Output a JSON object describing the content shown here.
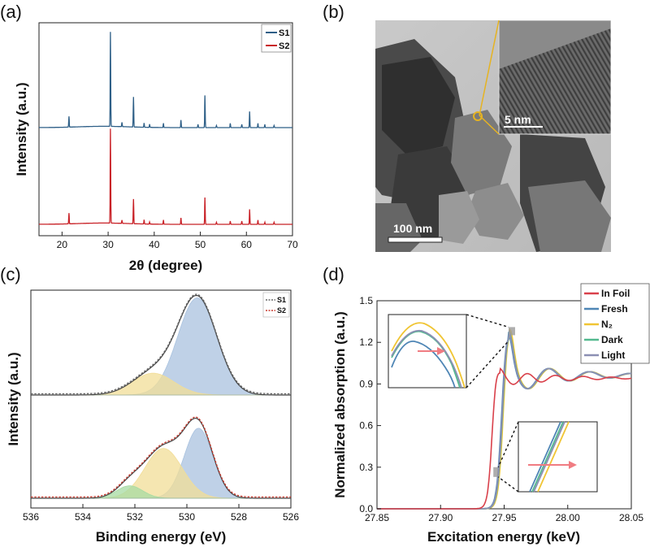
{
  "panels": {
    "a": {
      "label": "(a)"
    },
    "b": {
      "label": "(b)",
      "scale_bar_main": "100 nm",
      "scale_bar_inset": "5 nm"
    },
    "c": {
      "label": "(c)"
    },
    "d": {
      "label": "(d)"
    }
  },
  "chart_data": [
    {
      "id": "a",
      "type": "line",
      "xlabel": "2θ (degree)",
      "ylabel": "Intensity (a.u.)",
      "xlim": [
        15,
        70
      ],
      "xticks": [
        "20",
        "30",
        "40",
        "50",
        "60",
        "70"
      ],
      "yticks": [],
      "legend_position": "top-right",
      "series": [
        {
          "name": "S1",
          "color": "#2e5f87",
          "offset": 0.55,
          "peaks": [
            [
              21.5,
              0.1
            ],
            [
              30.5,
              0.88
            ],
            [
              33.0,
              0.04
            ],
            [
              35.5,
              0.28
            ],
            [
              37.8,
              0.04
            ],
            [
              39.0,
              0.03
            ],
            [
              42.0,
              0.04
            ],
            [
              45.8,
              0.07
            ],
            [
              49.5,
              0.03
            ],
            [
              51.0,
              0.3
            ],
            [
              53.5,
              0.02
            ],
            [
              56.5,
              0.04
            ],
            [
              59.0,
              0.03
            ],
            [
              60.7,
              0.15
            ],
            [
              62.5,
              0.04
            ],
            [
              64.0,
              0.03
            ],
            [
              66.0,
              0.02
            ]
          ]
        },
        {
          "name": "S2",
          "color": "#c82026",
          "offset": 0.0,
          "peaks": [
            [
              21.5,
              0.1
            ],
            [
              30.5,
              0.88
            ],
            [
              33.0,
              0.03
            ],
            [
              35.5,
              0.23
            ],
            [
              37.8,
              0.04
            ],
            [
              39.0,
              0.02
            ],
            [
              42.0,
              0.04
            ],
            [
              45.8,
              0.06
            ],
            [
              51.0,
              0.25
            ],
            [
              53.5,
              0.02
            ],
            [
              56.5,
              0.03
            ],
            [
              59.0,
              0.03
            ],
            [
              60.7,
              0.14
            ],
            [
              62.5,
              0.04
            ],
            [
              64.0,
              0.02
            ],
            [
              66.0,
              0.02
            ]
          ]
        }
      ]
    },
    {
      "id": "c",
      "type": "area",
      "xlabel": "Binding energy (eV)",
      "ylabel": "Intensity (a.u.)",
      "xlim": [
        536,
        526
      ],
      "xticks": [
        "536",
        "534",
        "532",
        "530",
        "528",
        "526"
      ],
      "yticks": [],
      "legend_position": "top-right",
      "series": [
        {
          "name": "S1",
          "color": "#666666",
          "style": "dashed"
        },
        {
          "name": "S2",
          "color": "#c83a2e",
          "style": "dashed"
        }
      ],
      "stacks": [
        {
          "sample": "S1",
          "offset": 1.0,
          "components": [
            {
              "center": 529.6,
              "height": 0.98,
              "width": 0.75,
              "color": "#a9c2df"
            },
            {
              "center": 531.3,
              "height": 0.22,
              "width": 0.8,
              "color": "#f2dd97"
            }
          ]
        },
        {
          "sample": "S2",
          "offset": 0.0,
          "components": [
            {
              "center": 529.55,
              "height": 0.73,
              "width": 0.55,
              "color": "#a9c2df"
            },
            {
              "center": 530.9,
              "height": 0.52,
              "width": 0.72,
              "color": "#f2dd97"
            },
            {
              "center": 532.2,
              "height": 0.13,
              "width": 0.5,
              "color": "#a7dba3"
            }
          ]
        }
      ]
    },
    {
      "id": "d",
      "type": "line",
      "xlabel": "Excitation energy (keV)",
      "ylabel": "Normalized absorption (a.u.)",
      "xlim": [
        27.85,
        28.05
      ],
      "ylim": [
        0.0,
        1.5
      ],
      "xticks": [
        "27.85",
        "27.90",
        "27.95",
        "28.00",
        "28.05"
      ],
      "yticks": [
        "0.0",
        "0.3",
        "0.6",
        "0.9",
        "1.2",
        "1.5"
      ],
      "legend_position": "top-right",
      "series": [
        {
          "name": "In Foil",
          "color": "#d9414b"
        },
        {
          "name": "Fresh",
          "color": "#4f86b5"
        },
        {
          "name": "N₂",
          "color": "#f0c534"
        },
        {
          "name": "Dark",
          "color": "#53b98f"
        },
        {
          "name": "Light",
          "color": "#8b8fb3"
        }
      ]
    }
  ]
}
